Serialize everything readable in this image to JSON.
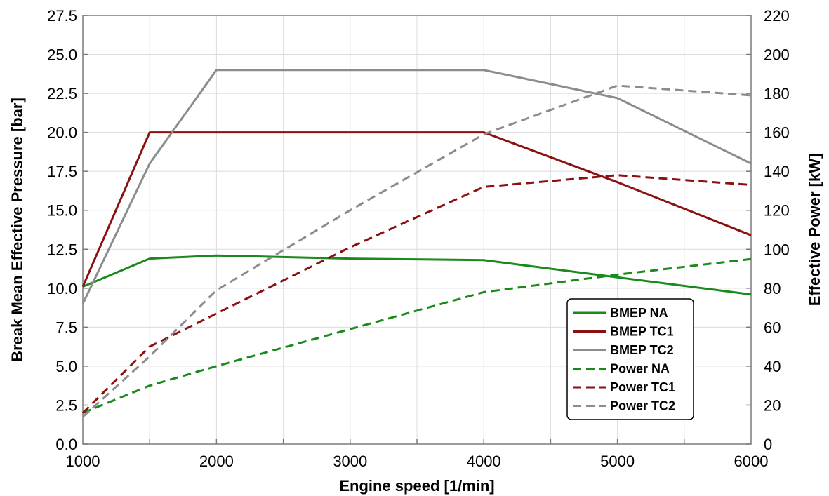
{
  "chart_data": {
    "type": "line",
    "xlabel": "Engine speed [1/min]",
    "ylabel_left": "Break Mean Effective Pressure [bar]",
    "ylabel_right": "Effective Power [kW]",
    "xlim": [
      1000,
      6000
    ],
    "ylim_left": [
      0,
      27.5
    ],
    "ylim_right": [
      0,
      220
    ],
    "x_ticks": [
      1000,
      2000,
      3000,
      4000,
      5000,
      6000
    ],
    "y_ticks_left": [
      "0.0",
      "2.5",
      "5.0",
      "7.5",
      "10.0",
      "12.5",
      "15.0",
      "17.5",
      "20.0",
      "22.5",
      "25.0",
      "27.5"
    ],
    "y_ticks_right": [
      "0",
      "20",
      "40",
      "60",
      "80",
      "100",
      "120",
      "140",
      "160",
      "180",
      "200",
      "220"
    ],
    "grid": true,
    "legend_position": "lower-right",
    "series": [
      {
        "name": "BMEP NA",
        "axis": "left",
        "color": "#1a8a1a",
        "dash": "solid",
        "x": [
          1000,
          1500,
          2000,
          3000,
          4000,
          5000,
          6000
        ],
        "y": [
          10.1,
          11.9,
          12.1,
          11.9,
          11.8,
          10.7,
          9.6
        ]
      },
      {
        "name": "BMEP TC1",
        "axis": "left",
        "color": "#8b1010",
        "dash": "solid",
        "x": [
          1000,
          1500,
          2000,
          3000,
          4000,
          5000,
          6000
        ],
        "y": [
          10.1,
          20.0,
          20.0,
          20.0,
          20.0,
          16.8,
          13.4
        ]
      },
      {
        "name": "BMEP TC2",
        "axis": "left",
        "color": "#8c8c8c",
        "dash": "solid",
        "x": [
          1000,
          1500,
          2000,
          3000,
          4000,
          5000,
          6000
        ],
        "y": [
          9.0,
          18.0,
          24.0,
          24.0,
          24.0,
          22.2,
          18.0
        ]
      },
      {
        "name": "Power NA",
        "axis": "right",
        "color": "#1a8a1a",
        "dash": "dashed",
        "x": [
          1000,
          1500,
          2000,
          3000,
          4000,
          5000,
          6000
        ],
        "y": [
          16,
          30,
          40,
          59,
          78,
          87,
          95
        ]
      },
      {
        "name": "Power TC1",
        "axis": "right",
        "color": "#8b1010",
        "dash": "dashed",
        "x": [
          1000,
          1500,
          2000,
          3000,
          4000,
          5000,
          6000
        ],
        "y": [
          16,
          50,
          67,
          101,
          132,
          138,
          133
        ]
      },
      {
        "name": "Power TC2",
        "axis": "right",
        "color": "#8c8c8c",
        "dash": "dashed",
        "x": [
          1000,
          1500,
          2000,
          3000,
          4000,
          5000,
          6000
        ],
        "y": [
          14,
          45,
          79,
          120,
          159,
          184,
          179
        ]
      }
    ]
  }
}
